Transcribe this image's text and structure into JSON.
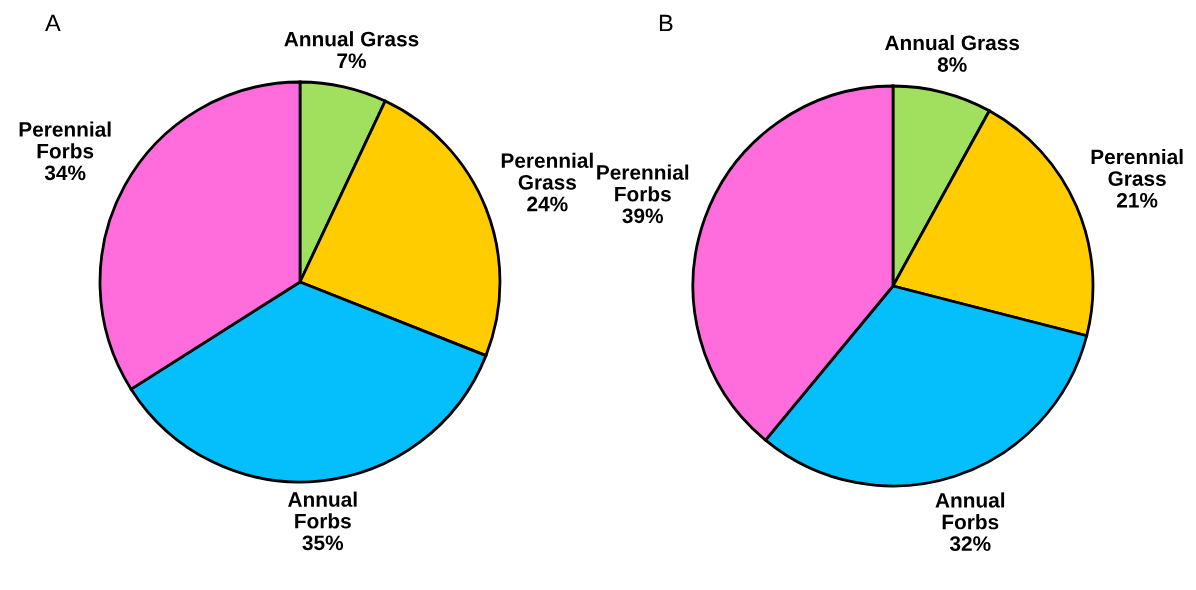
{
  "chart_data": [
    {
      "type": "pie",
      "title": "A",
      "categories": [
        "Annual Grass",
        "Perennial\nGrass",
        "Annual\nForbs",
        "Perennial\nForbs"
      ],
      "values": [
        7,
        24,
        35,
        34
      ],
      "value_labels": [
        "7%",
        "24%",
        "35%",
        "34%"
      ],
      "colors": [
        "#a0e05e",
        "#ffcc00",
        "#05bffd",
        "#ff6ddc"
      ]
    },
    {
      "type": "pie",
      "title": "B",
      "categories": [
        "Annual Grass",
        "Perennial\nGrass",
        "Annual\nForbs",
        "Perennial\nForbs"
      ],
      "values": [
        8,
        21,
        32,
        39
      ],
      "value_labels": [
        "8%",
        "21%",
        "32%",
        "39%"
      ],
      "colors": [
        "#a0e05e",
        "#ffcc00",
        "#05bffd",
        "#ff6ddc"
      ]
    }
  ]
}
